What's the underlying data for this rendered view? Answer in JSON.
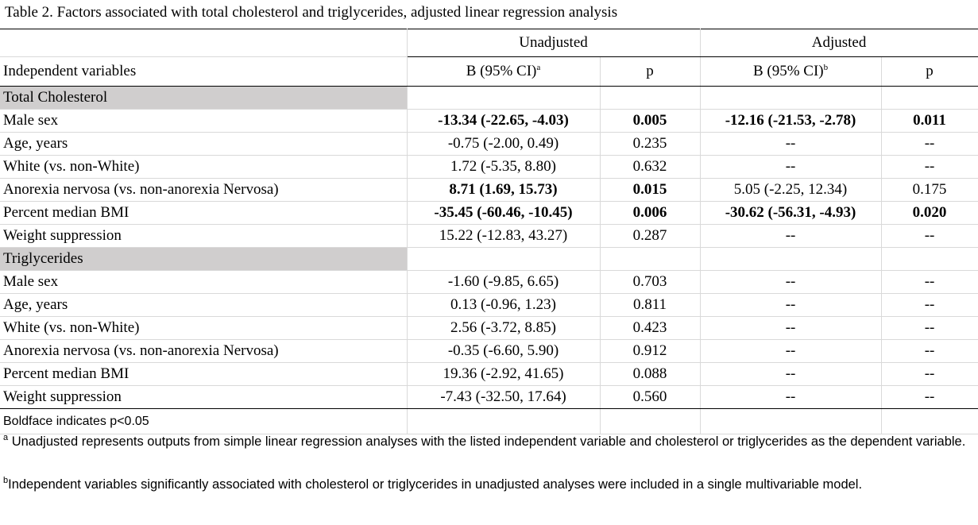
{
  "caption": "Table 2. Factors associated with total cholesterol and triglycerides, adjusted linear regression analysis",
  "header": {
    "group_unadjusted": "Unadjusted",
    "group_adjusted": "Adjusted",
    "col_variables": "Independent variables",
    "col_b_unadj": "B (95% CI)",
    "col_b_unadj_sup": "a",
    "col_p_unadj": "p",
    "col_b_adj": "B (95% CI)",
    "col_b_adj_sup": "b",
    "col_p_adj": "p"
  },
  "sections": [
    {
      "title": "Total Cholesterol",
      "rows": [
        {
          "variable": "Male sex",
          "b_unadj": "-13.34 (-22.65,  -4.03)",
          "p_unadj": "0.005",
          "b_adj": "-12.16 (-21.53, -2.78)",
          "p_adj": "0.011",
          "bold_unadj": true,
          "bold_adj": true
        },
        {
          "variable": "Age, years",
          "b_unadj": "-0.75 (-2.00, 0.49)",
          "p_unadj": "0.235",
          "b_adj": "--",
          "p_adj": "--",
          "bold_unadj": false,
          "bold_adj": false
        },
        {
          "variable": "White (vs. non-White)",
          "b_unadj": "1.72 (-5.35, 8.80)",
          "p_unadj": "0.632",
          "b_adj": "--",
          "p_adj": "--",
          "bold_unadj": false,
          "bold_adj": false
        },
        {
          "variable": "Anorexia nervosa (vs. non-anorexia Nervosa)",
          "b_unadj": "8.71 (1.69, 15.73)",
          "p_unadj": "0.015",
          "b_adj": "5.05 (-2.25, 12.34)",
          "p_adj": "0.175",
          "bold_unadj": true,
          "bold_adj": false
        },
        {
          "variable": "Percent median BMI",
          "b_unadj": "-35.45 (-60.46, -10.45)",
          "p_unadj": "0.006",
          "b_adj": "-30.62 (-56.31, -4.93)",
          "p_adj": "0.020",
          "bold_unadj": true,
          "bold_adj": true
        },
        {
          "variable": "Weight suppression",
          "b_unadj": "15.22 (-12.83, 43.27)",
          "p_unadj": "0.287",
          "b_adj": "--",
          "p_adj": "--",
          "bold_unadj": false,
          "bold_adj": false
        }
      ]
    },
    {
      "title": "Triglycerides",
      "rows": [
        {
          "variable": "Male sex",
          "b_unadj": "-1.60 (-9.85, 6.65)",
          "p_unadj": "0.703",
          "b_adj": "--",
          "p_adj": "--",
          "bold_unadj": false,
          "bold_adj": false
        },
        {
          "variable": "Age, years",
          "b_unadj": "0.13 (-0.96, 1.23)",
          "p_unadj": "0.811",
          "b_adj": "--",
          "p_adj": "--",
          "bold_unadj": false,
          "bold_adj": false
        },
        {
          "variable": "White (vs. non-White)",
          "b_unadj": "2.56 (-3.72, 8.85)",
          "p_unadj": "0.423",
          "b_adj": "--",
          "p_adj": "--",
          "bold_unadj": false,
          "bold_adj": false
        },
        {
          "variable": "Anorexia nervosa (vs. non-anorexia Nervosa)",
          "b_unadj": "-0.35 (-6.60, 5.90)",
          "p_unadj": "0.912",
          "b_adj": "--",
          "p_adj": "--",
          "bold_unadj": false,
          "bold_adj": false
        },
        {
          "variable": "Percent median BMI",
          "b_unadj": "19.36 (-2.92, 41.65)",
          "p_unadj": "0.088",
          "b_adj": "--",
          "p_adj": "--",
          "bold_unadj": false,
          "bold_adj": false
        },
        {
          "variable": "Weight suppression",
          "b_unadj": "-7.43 (-32.50, 17.64)",
          "p_unadj": "0.560",
          "b_adj": "--",
          "p_adj": "--",
          "bold_unadj": false,
          "bold_adj": false
        }
      ]
    }
  ],
  "notes": {
    "boldface": "Boldface indicates p<0.05",
    "footnote_a_marker": "a",
    "footnote_a": " Unadjusted represents outputs from simple linear regression analyses with the listed independent variable and cholesterol or triglycerides as the dependent variable.",
    "footnote_b_marker": "b",
    "footnote_b": "Independent variables significantly associated with cholesterol or triglycerides in unadjusted analyses were included in a single multivariable model."
  },
  "colors": {
    "section_header_bg": "#d0cece",
    "grid_line": "#d9d9d9",
    "rule": "#000000"
  }
}
